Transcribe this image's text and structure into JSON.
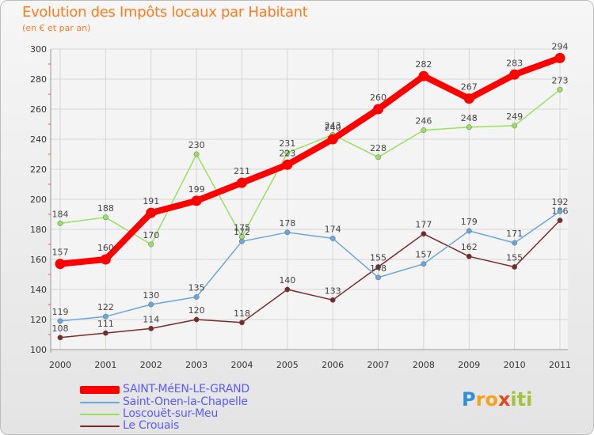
{
  "title": "Evolution des Impôts locaux par Habitant",
  "subtitle": "(en € et par an)",
  "logo": {
    "letters": [
      "P",
      "r",
      "o",
      "x",
      "i",
      "t",
      "i"
    ],
    "colors": [
      "#2d8fd8",
      "#f2a51a",
      "#f2a51a",
      "#e3491a",
      "#a0c43c",
      "#a0c43c",
      "#a0c43c"
    ]
  },
  "chart_data": {
    "type": "line",
    "title": "Evolution des Impôts locaux par Habitant",
    "subtitle": "(en € et par an)",
    "xlabel": "",
    "ylabel": "",
    "categories": [
      "2000",
      "2001",
      "2002",
      "2003",
      "2004",
      "2005",
      "2006",
      "2007",
      "2008",
      "2009",
      "2010",
      "2011"
    ],
    "ylim": [
      100,
      300
    ],
    "yticks": [
      100,
      120,
      140,
      160,
      180,
      200,
      220,
      240,
      260,
      280,
      300
    ],
    "grid": true,
    "legend_position": "bottom-left",
    "series": [
      {
        "name": "SAINT-MéEN-LE-GRAND",
        "color": "#ff0000",
        "values": [
          157,
          160,
          191,
          199,
          211,
          223,
          240,
          260,
          282,
          267,
          283,
          294
        ]
      },
      {
        "name": "Saint-Onen-la-Chapelle",
        "color": "#6aa6d8",
        "values": [
          119,
          122,
          130,
          135,
          172,
          178,
          174,
          148,
          157,
          179,
          171,
          192
        ]
      },
      {
        "name": "Loscouët-sur-Meu",
        "color": "#99e060",
        "values": [
          184,
          188,
          170,
          230,
          175,
          231,
          243,
          228,
          246,
          248,
          249,
          273
        ]
      },
      {
        "name": "Le Crouais",
        "color": "#7a2a2a",
        "values": [
          108,
          111,
          114,
          120,
          118,
          140,
          133,
          155,
          177,
          162,
          155,
          186
        ]
      }
    ]
  }
}
